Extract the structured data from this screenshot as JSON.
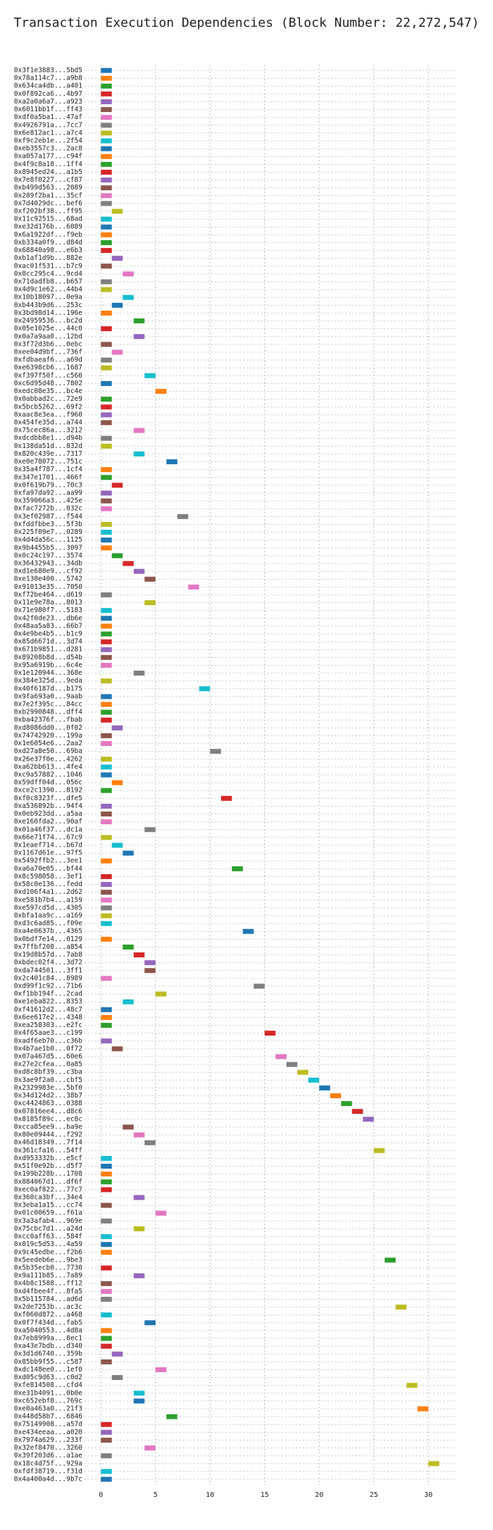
{
  "chart_data": {
    "type": "gantt",
    "title": "Transaction Execution Dependencies (Block Number: 22,272,547)",
    "categories": [
      "0x3f1e3883...5bd5",
      "0x78a114c7...a9b8",
      "0x634ca4db...a401",
      "0x0f892ca6...4b97",
      "0xa2a0a6a7...a923",
      "0x6011bb1f...ff43",
      "0xdf0a5ba1...47af",
      "0x4926791a...7cc7",
      "0x6e812ac1...a7c4",
      "0xf9c2eb1e...2f54",
      "0xeb3557c3...2ac8",
      "0xa057a177...c94f",
      "0x4f9c8a18...1ff4",
      "0x8945ed24...a1b5",
      "0x7e8f0227...cf87",
      "0xb499d563...2089",
      "0x289f2ba1...35cf",
      "0x7d4029dc...bef6",
      "0xf202bf38...ff95",
      "0x11c92515...68ad",
      "0xe32d176b...6089",
      "0x6a1922df...f9eb",
      "0xb334a0f9...d84d",
      "0x68840a98...e6b3",
      "0xb1af1d9b...882e",
      "0xac01f531...b7c9",
      "0x8cc295c4...9cd4",
      "0x71dadfb8...b657",
      "0x4d9c1e62...44b4",
      "0x10b18097...0e9a",
      "0xb443b9d6...253c",
      "0x3bd98d14...196e",
      "0x24959536...bc2d",
      "0x05e1025e...44c0",
      "0x0a7a9aa0...12bd",
      "0x3f72d3b6...0ebc",
      "0xee04d9bf...736f",
      "0xfdbaeaf6...a69d",
      "0xe6398cb6...1687",
      "0xf397f50f...c560",
      "0xc6d95d48...7802",
      "0xedc08e35...bc4e",
      "0x0abbad2c...72e9",
      "0x5bcb5262...69f2",
      "0xaac8e3ea...f960",
      "0x454fe35d...a744",
      "0x75cec86a...3212",
      "0xdcdbb8e1...d94b",
      "0x138da51d...832d",
      "0x820c439e...7317",
      "0xe0e78072...751c",
      "0x35a4f787...1cf4",
      "0x347e1701...466f",
      "0x0f619b79...70c3",
      "0xfa97da92...aa99",
      "0x359066a3...425e",
      "0xfac7272b...032c",
      "0x3ef02987...f544",
      "0xfddfbbe3...5f3b",
      "0x225f09e7...0289",
      "0x4d4da56c...1125",
      "0x9b4455b5...3097",
      "0x0c24c197...3574",
      "0x36432943...34db",
      "0xd1e680e9...cf92",
      "0xe130e400...5742",
      "0x91013e35...7050",
      "0xf72be464...d619",
      "0x11e9e78a...8013",
      "0x71e980f7...5183",
      "0x42f0de23...db6e",
      "0x48aa5a83...66b7",
      "0x4e9be4b5...b1c9",
      "0x85d6671d...3d74",
      "0x671b9851...d281",
      "0x89208b8d...d54b",
      "0x95a6919b...6c4e",
      "0x1e120944...368e",
      "0x384e325d...9eda",
      "0x40f6187d...b175",
      "0x9fa693a0...9aab",
      "0x7e2f395c...84cc",
      "0xb2990848...dff4",
      "0xba42376f...fbab",
      "0xd8086dd0...0f02",
      "0x74742920...199a",
      "0x1e6054e6...2aa2",
      "0xd27a8e50...69ba",
      "0x26e37f0e...4262",
      "0xa62bb613...4fe4",
      "0xc9a57882...1046",
      "0x59dff04d...056c",
      "0xce2c1390...8192",
      "0xf0c8323f...dfe5",
      "0xa536892b...94f4",
      "0x0eb923dd...a5aa",
      "0xe160fda2...90af",
      "0x01a46f37...dc1a",
      "0x66e71f74...67c9",
      "0x1eaef714...b67d",
      "0x1167d61e...97f5",
      "0x5492ffb2...3ee1",
      "0xa6a70e05...bf44",
      "0x8c598058...3ef1",
      "0x58c0e136...fedd",
      "0xd106f4a1...2d62",
      "0xe581b7b4...a159",
      "0xe597cd5d...4305",
      "0xbfa1aa9c...a169",
      "0xd3c6ad85...f09e",
      "0xa4e0637b...4365",
      "0x0bdf7e14...0129",
      "0x7ffbf208...a854",
      "0x19d8b57d...7ab8",
      "0xbdec02f4...3d72",
      "0xda744501...3ff1",
      "0x2c401c84...8989",
      "0xd99f1c92...71b6",
      "0xf1bb194f...2cad",
      "0xe1eba822...8353",
      "0xf41612d2...48c7",
      "0x6ee617e2...4348",
      "0xea258303...e2fc",
      "0x4f65aae3...c199",
      "0xadf6eb70...c36b",
      "0x4b7ae1b0...0f72",
      "0x07a467d5...60e6",
      "0x27e2cfea...0a85",
      "0xd8c8bf39...c3ba",
      "0x3ae9f2a0...cbf5",
      "0x2329983e...5bf0",
      "0x34d124d2...38b7",
      "0xc4424863...0388",
      "0x07816ee4...d8c6",
      "0x8185f89c...ec8c",
      "0xcca85ee9...ba9e",
      "0x80e09444...f292",
      "0x46d18349...7f14",
      "0x361cfa16...54ff",
      "0xd953332b...e5cf",
      "0x51f0e92b...d5f7",
      "0x199b228b...1708",
      "0x884067d1...df6f",
      "0xec0af822...77c7",
      "0x360ca3bf...34e4",
      "0x3eba1a15...cc74",
      "0x01c00659...f61a",
      "0x3a3afab4...969e",
      "0x75cbc7d1...a24d",
      "0xcc0aff63...584f",
      "0x819c5d53...4a59",
      "0x9c45edbe...f2b6",
      "0x5eedeb6e...9be3",
      "0x5b35ecb0...7730",
      "0x9a111b85...7a89",
      "0x4b8c1588...ff12",
      "0xd4fbee4f...8fa5",
      "0x5b115784...ad6d",
      "0x2de7253b...ac3c",
      "0xf060d872...a468",
      "0x0f7f434d...fab5",
      "0xa5040553...4d8a",
      "0x7eb8999a...8ec1",
      "0xa43e7bdb...d340",
      "0x3d1d6740...359b",
      "0x85bb9f55...c587",
      "0xdc148ee0...1ef0",
      "0xd05c9d63...c0d2",
      "0xfe814508...cfd4",
      "0xe31b4091...0b0e",
      "0xc652ebf8...769c",
      "0xe0a463a0...21f3",
      "0x448d58b7...6846",
      "0x75149908...a57d",
      "0xe434eeaa...a020",
      "0x7974a629...233f",
      "0x32ef8470...3260",
      "0x39f203d6...a1ae",
      "0x18c4d75f...929a",
      "0xfdf38719...f31d",
      "0x4a400a4d...9b7c"
    ],
    "values": [
      0,
      0,
      0,
      0,
      0,
      0,
      0,
      0,
      0,
      0,
      0,
      0,
      0,
      0,
      0,
      0,
      0,
      0,
      1,
      0,
      0,
      0,
      0,
      0,
      1,
      0,
      2,
      0,
      0,
      2,
      1,
      0,
      3,
      0,
      3,
      0,
      1,
      0,
      0,
      4,
      0,
      5,
      0,
      0,
      0,
      0,
      3,
      0,
      0,
      3,
      6,
      0,
      0,
      1,
      0,
      0,
      0,
      7,
      0,
      0,
      0,
      0,
      1,
      2,
      3,
      4,
      8,
      0,
      4,
      0,
      0,
      0,
      0,
      0,
      0,
      0,
      0,
      3,
      0,
      9,
      0,
      0,
      0,
      0,
      1,
      0,
      0,
      10,
      0,
      0,
      0,
      1,
      0,
      11,
      0,
      0,
      0,
      4,
      0,
      1,
      2,
      0,
      12,
      0,
      0,
      0,
      0,
      0,
      0,
      0,
      13,
      0,
      2,
      3,
      4,
      4,
      0,
      14,
      5,
      2,
      0,
      0,
      0,
      15,
      0,
      1,
      16,
      17,
      18,
      19,
      20,
      21,
      22,
      23,
      24,
      2,
      3,
      4,
      25,
      0,
      0,
      0,
      0,
      0,
      3,
      0,
      5,
      0,
      3,
      0,
      0,
      0,
      26,
      0,
      3,
      0,
      0,
      0,
      27,
      0,
      4,
      0,
      0,
      0,
      1,
      0,
      5,
      1,
      28,
      3,
      3,
      29,
      6,
      0,
      0,
      0,
      4,
      0,
      30,
      0,
      0
    ],
    "durations": [
      1,
      1,
      1,
      1,
      1,
      1,
      1,
      1,
      1,
      1,
      1,
      1,
      1,
      1,
      1,
      1,
      1,
      1,
      1,
      1,
      1,
      1,
      1,
      1,
      1,
      1,
      1,
      1,
      1,
      1,
      1,
      1,
      1,
      1,
      1,
      1,
      1,
      1,
      1,
      1,
      1,
      1,
      1,
      1,
      1,
      1,
      1,
      1,
      1,
      1,
      1,
      1,
      1,
      1,
      1,
      1,
      1,
      1,
      1,
      1,
      1,
      1,
      1,
      1,
      1,
      1,
      1,
      1,
      1,
      1,
      1,
      1,
      1,
      1,
      1,
      1,
      1,
      1,
      1,
      1,
      1,
      1,
      1,
      1,
      1,
      1,
      1,
      1,
      1,
      1,
      1,
      1,
      1,
      1,
      1,
      1,
      1,
      1,
      1,
      1,
      1,
      1,
      1,
      1,
      1,
      1,
      1,
      1,
      1,
      1,
      1,
      1,
      1,
      1,
      1,
      1,
      1,
      1,
      1,
      1,
      1,
      1,
      1,
      1,
      1,
      1,
      1,
      1,
      1,
      1,
      1,
      1,
      1,
      1,
      1,
      1,
      1,
      1,
      1,
      1,
      1,
      1,
      1,
      1,
      1,
      1,
      1,
      1,
      1,
      1,
      1,
      1,
      1,
      1,
      1,
      1,
      1,
      1,
      1,
      1,
      1,
      1,
      1,
      1,
      1,
      1,
      1,
      1,
      1,
      1,
      1,
      1,
      1,
      1,
      1,
      1,
      1,
      1,
      1,
      1,
      1
    ],
    "colors": [
      "#1f77b4",
      "#ff7f0e",
      "#2ca02c",
      "#d62728",
      "#9467bd",
      "#8c564b",
      "#e377c2",
      "#7f7f7f",
      "#bcbd22",
      "#17becf"
    ],
    "xlim": [
      -1.5,
      32.5
    ],
    "xticks": [
      0,
      5,
      10,
      15,
      20,
      25,
      30
    ],
    "grid": true
  }
}
